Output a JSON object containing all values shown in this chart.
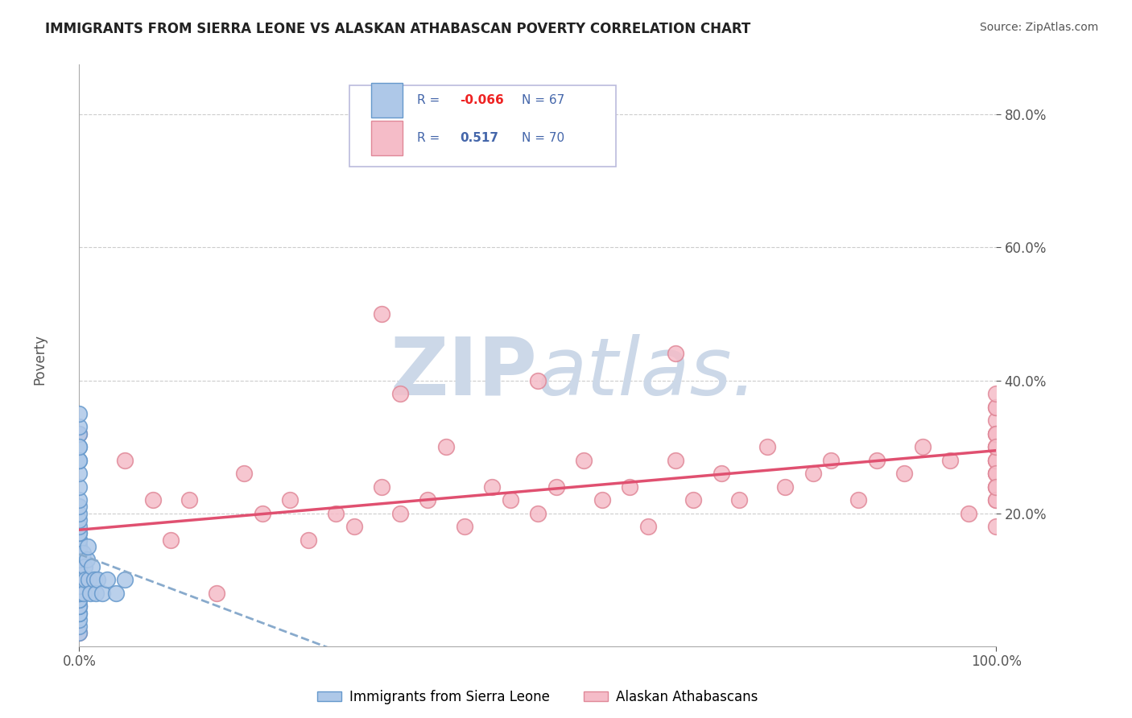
{
  "title": "IMMIGRANTS FROM SIERRA LEONE VS ALASKAN ATHABASCAN POVERTY CORRELATION CHART",
  "source": "Source: ZipAtlas.com",
  "ylabel": "Poverty",
  "xlim": [
    0.0,
    1.0
  ],
  "ylim": [
    0.0,
    0.875
  ],
  "x_tick_positions": [
    0.0,
    1.0
  ],
  "x_tick_labels": [
    "0.0%",
    "100.0%"
  ],
  "y_tick_values": [
    0.2,
    0.4,
    0.6,
    0.8
  ],
  "y_tick_labels": [
    "20.0%",
    "40.0%",
    "60.0%",
    "80.0%"
  ],
  "background_color": "#ffffff",
  "grid_color": "#cccccc",
  "watermark_color": "#ccd8e8",
  "sierra_leone_dot_fill": "#aec8e8",
  "sierra_leone_dot_edge": "#6699cc",
  "athabascan_dot_fill": "#f5bcc8",
  "athabascan_dot_edge": "#e08898",
  "trend_sl_color": "#88aacc",
  "trend_at_color": "#e05070",
  "legend_box_edge": "#bbbbdd",
  "legend_text_color": "#4466aa",
  "legend_r_neg_color": "#ee2222",
  "legend_r_pos_color": "#4466aa",
  "ytick_color": "#5588cc",
  "xtick_color": "#555555",
  "ylabel_color": "#555555",
  "title_color": "#222222",
  "source_color": "#555555",
  "sl_legend_label": "Immigrants from Sierra Leone",
  "at_legend_label": "Alaskan Athabascans",
  "sl_R": "-0.066",
  "sl_N": "67",
  "at_R": "0.517",
  "at_N": "70",
  "sierra_leone_x": [
    0.0,
    0.0,
    0.0,
    0.0,
    0.0,
    0.0,
    0.0,
    0.0,
    0.0,
    0.0,
    0.0,
    0.0,
    0.0,
    0.0,
    0.0,
    0.0,
    0.0,
    0.0,
    0.0,
    0.0,
    0.0,
    0.0,
    0.0,
    0.0,
    0.0,
    0.0,
    0.0,
    0.0,
    0.0,
    0.0,
    0.0,
    0.0,
    0.0,
    0.0,
    0.0,
    0.0,
    0.0,
    0.0,
    0.0,
    0.0,
    0.0,
    0.0,
    0.0,
    0.0,
    0.0,
    0.0,
    0.0,
    0.0,
    0.0,
    0.0,
    0.003,
    0.004,
    0.005,
    0.006,
    0.007,
    0.008,
    0.009,
    0.01,
    0.012,
    0.014,
    0.016,
    0.018,
    0.02,
    0.025,
    0.03,
    0.04,
    0.05
  ],
  "sierra_leone_y": [
    0.02,
    0.03,
    0.04,
    0.05,
    0.05,
    0.06,
    0.06,
    0.07,
    0.07,
    0.08,
    0.08,
    0.08,
    0.09,
    0.09,
    0.09,
    0.1,
    0.1,
    0.1,
    0.11,
    0.11,
    0.11,
    0.12,
    0.12,
    0.12,
    0.13,
    0.13,
    0.13,
    0.14,
    0.14,
    0.14,
    0.15,
    0.15,
    0.16,
    0.16,
    0.17,
    0.17,
    0.18,
    0.19,
    0.2,
    0.21,
    0.22,
    0.24,
    0.26,
    0.28,
    0.3,
    0.32,
    0.33,
    0.35,
    0.28,
    0.3,
    0.1,
    0.14,
    0.08,
    0.12,
    0.1,
    0.13,
    0.15,
    0.1,
    0.08,
    0.12,
    0.1,
    0.08,
    0.1,
    0.08,
    0.1,
    0.08,
    0.1
  ],
  "athabascan_x": [
    0.0,
    0.0,
    0.0,
    0.0,
    0.0,
    0.0,
    0.05,
    0.08,
    0.1,
    0.12,
    0.15,
    0.18,
    0.2,
    0.23,
    0.25,
    0.28,
    0.3,
    0.33,
    0.35,
    0.38,
    0.4,
    0.42,
    0.45,
    0.47,
    0.5,
    0.52,
    0.55,
    0.57,
    0.6,
    0.62,
    0.65,
    0.67,
    0.7,
    0.72,
    0.75,
    0.77,
    0.8,
    0.82,
    0.85,
    0.87,
    0.9,
    0.92,
    0.95,
    0.97,
    1.0,
    1.0,
    1.0,
    1.0,
    1.0,
    1.0,
    1.0,
    1.0,
    1.0,
    1.0,
    1.0,
    1.0,
    1.0,
    1.0,
    1.0,
    1.0,
    1.0,
    1.0,
    1.0,
    1.0,
    1.0,
    1.0,
    0.33,
    0.35,
    0.5,
    0.65
  ],
  "athabascan_y": [
    0.02,
    0.06,
    0.08,
    0.1,
    0.12,
    0.32,
    0.28,
    0.22,
    0.16,
    0.22,
    0.08,
    0.26,
    0.2,
    0.22,
    0.16,
    0.2,
    0.18,
    0.24,
    0.2,
    0.22,
    0.3,
    0.18,
    0.24,
    0.22,
    0.2,
    0.24,
    0.28,
    0.22,
    0.24,
    0.18,
    0.28,
    0.22,
    0.26,
    0.22,
    0.3,
    0.24,
    0.26,
    0.28,
    0.22,
    0.28,
    0.26,
    0.3,
    0.28,
    0.2,
    0.22,
    0.24,
    0.26,
    0.28,
    0.3,
    0.32,
    0.34,
    0.36,
    0.26,
    0.28,
    0.3,
    0.32,
    0.24,
    0.28,
    0.32,
    0.36,
    0.38,
    0.22,
    0.26,
    0.3,
    0.18,
    0.24,
    0.5,
    0.38,
    0.4,
    0.44
  ]
}
